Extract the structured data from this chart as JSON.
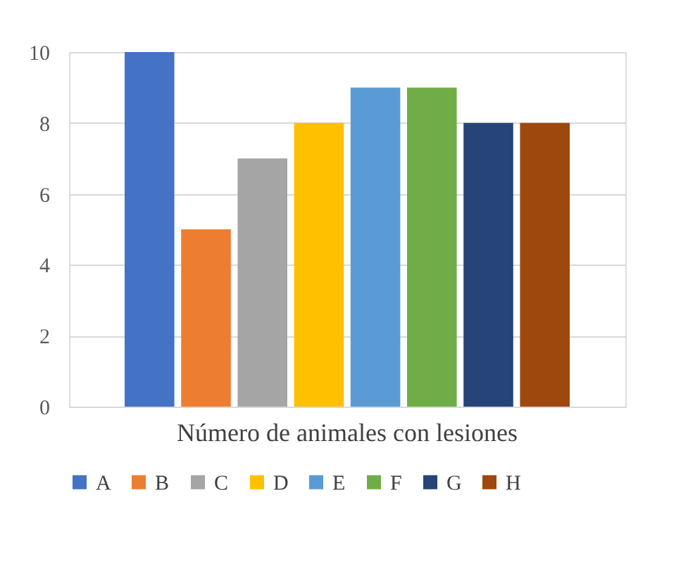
{
  "chart_data": {
    "type": "bar",
    "categories": [
      "Número de animales con lesiones"
    ],
    "series": [
      {
        "name": "A",
        "color": "#4472c4",
        "values": [
          10
        ]
      },
      {
        "name": "B",
        "color": "#ed7d31",
        "values": [
          5
        ]
      },
      {
        "name": "C",
        "color": "#a5a5a5",
        "values": [
          7
        ]
      },
      {
        "name": "D",
        "color": "#ffc000",
        "values": [
          8
        ]
      },
      {
        "name": "E",
        "color": "#5b9bd5",
        "values": [
          9
        ]
      },
      {
        "name": "F",
        "color": "#70ad47",
        "values": [
          9
        ]
      },
      {
        "name": "G",
        "color": "#264478",
        "values": [
          8
        ]
      },
      {
        "name": "H",
        "color": "#9e480e",
        "values": [
          8
        ]
      }
    ],
    "ylim": [
      0,
      10
    ],
    "yticks": [
      0,
      2,
      4,
      6,
      8,
      10
    ],
    "grid": "y",
    "legend": "bottom"
  }
}
